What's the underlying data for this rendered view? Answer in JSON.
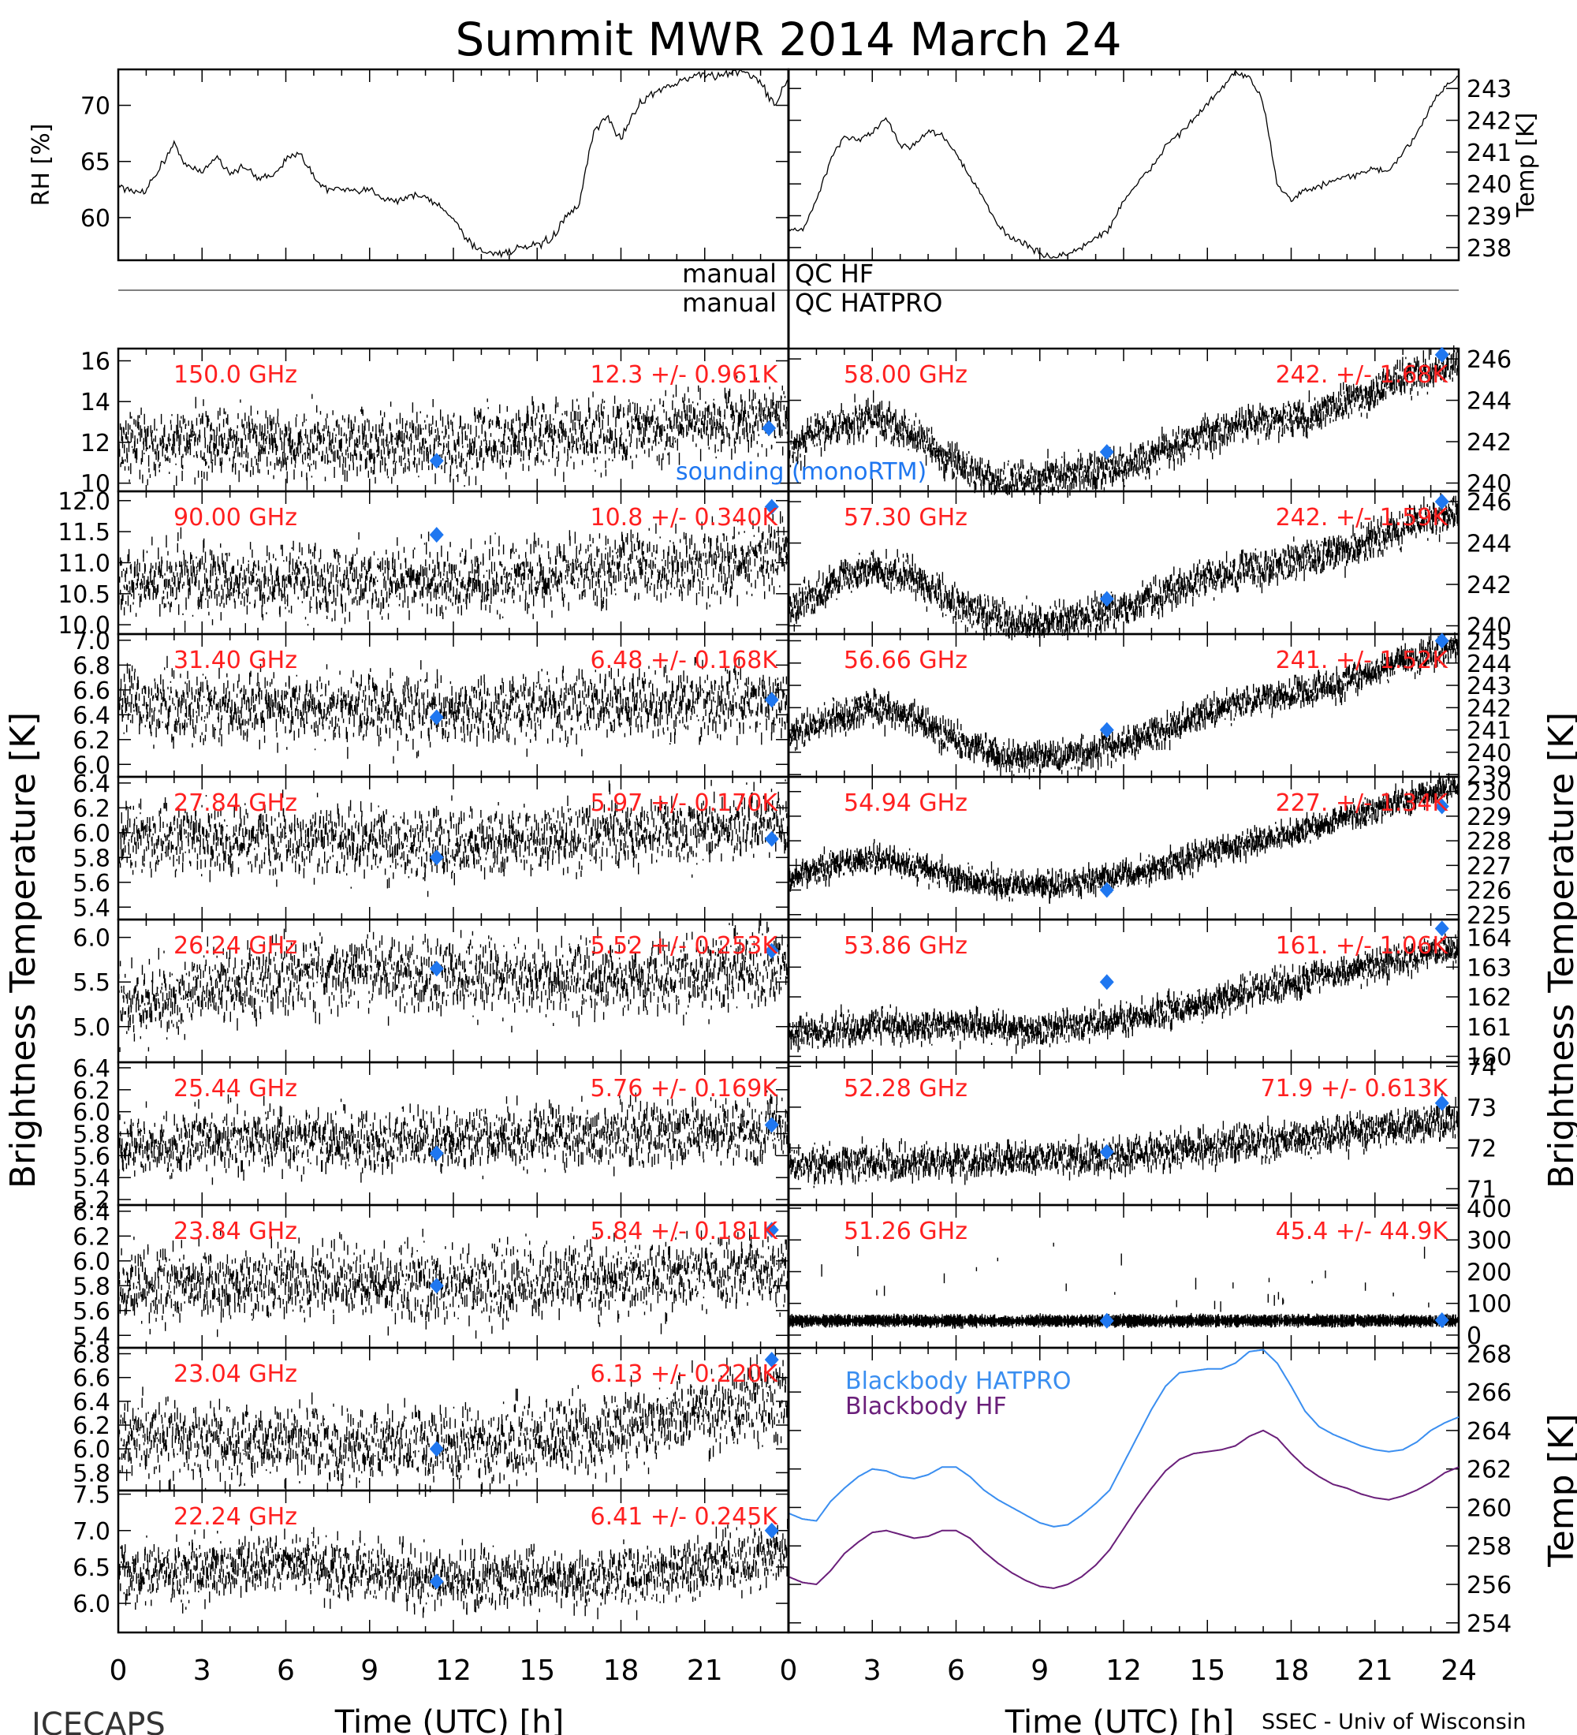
{
  "page": {
    "title": "Summit MWR 2014 March 24",
    "footer_left": "ICECAPS",
    "footer_right": "SSEC - Univ of Wisconsin",
    "left_ylabel": "Brightness Temperature [K]",
    "right_ylabel": "Brightness Temperature [K]",
    "qc_prefix": "manual",
    "qc_hf": "QC HF",
    "qc_hatpro": "QC HATPRO",
    "colors": {
      "frequency_label": "#ff2020",
      "sounding": "#1f77f0",
      "blackbody_hatpro": "#3a8ef0",
      "blackbody_hf": "#6a1f7a",
      "data": "#000000"
    }
  },
  "chart_data": [
    {
      "id": "rh",
      "type": "line",
      "ylabel": "RH [%]",
      "x_ticks": [
        0,
        3,
        6,
        9,
        12,
        15,
        18,
        21
      ],
      "y_ticks": [
        60,
        65,
        70
      ],
      "xlim": [
        0,
        24
      ],
      "ylim": [
        56.2,
        73.2
      ],
      "x": [
        0,
        0.5,
        1,
        1.5,
        2,
        2.5,
        3,
        3.5,
        4,
        4.5,
        5,
        5.5,
        6,
        6.5,
        7,
        7.5,
        8,
        8.5,
        9,
        9.5,
        10,
        10.5,
        11,
        11.5,
        12,
        12.5,
        13,
        13.5,
        14,
        14.5,
        15,
        15.5,
        16,
        16.5,
        17,
        17.5,
        18,
        18.5,
        19,
        19.5,
        20,
        20.5,
        21,
        21.5,
        22,
        22.5,
        23,
        23.5,
        24
      ],
      "y": [
        63,
        62.2,
        62.5,
        64.5,
        66.5,
        64.5,
        64,
        65.5,
        64,
        64.5,
        63.5,
        63.8,
        65,
        66,
        63.5,
        62.5,
        62.5,
        62.2,
        62.5,
        61.8,
        61.5,
        62,
        61.8,
        61,
        60,
        58,
        57,
        56.8,
        57,
        57.3,
        57.5,
        58,
        60,
        61,
        67.5,
        69,
        67,
        69.5,
        71,
        71.5,
        72,
        72.5,
        72.8,
        72.5,
        73,
        73,
        72,
        70,
        72.5
      ]
    },
    {
      "id": "temp",
      "type": "line",
      "ylabel": "Temp [K]",
      "y_ticks": [
        238,
        239,
        240,
        241,
        242,
        243
      ],
      "xlim": [
        0,
        24
      ],
      "ylim": [
        237.6,
        243.6
      ],
      "x": [
        0,
        0.5,
        1,
        1.5,
        2,
        2.5,
        3,
        3.5,
        4,
        4.5,
        5,
        5.5,
        6,
        6.5,
        7,
        7.5,
        8,
        8.5,
        9,
        9.5,
        10,
        10.5,
        11,
        11.5,
        12,
        12.5,
        13,
        13.5,
        14,
        14.5,
        15,
        15.5,
        16,
        16.5,
        17,
        17.5,
        18,
        18.5,
        19,
        19.5,
        20,
        20.5,
        21,
        21.5,
        22,
        22.5,
        23,
        23.5,
        24
      ],
      "y": [
        238.6,
        238.5,
        239.5,
        240.7,
        241.5,
        241.4,
        241.6,
        242.1,
        241.2,
        241.2,
        241.7,
        241.5,
        241,
        240.2,
        239.5,
        238.7,
        238.3,
        238.1,
        237.8,
        237.7,
        237.8,
        238,
        238.3,
        238.6,
        239.5,
        240,
        240.5,
        241.2,
        241.6,
        242,
        242.5,
        243,
        243.5,
        243.3,
        242.6,
        240,
        239.5,
        239.8,
        239.9,
        240.1,
        240.2,
        240.3,
        240.5,
        240.4,
        241,
        241.5,
        242.5,
        243,
        243.4
      ]
    },
    {
      "id": "ch150",
      "type": "scatter",
      "frequency": "150.0 GHz",
      "stats": "12.3 +/- 0.961K",
      "y_ticks": [
        10,
        12,
        14,
        16
      ],
      "ylim": [
        9.6,
        16.6
      ],
      "xlim": [
        0,
        24
      ],
      "mean": 12.3,
      "noise": 0.96,
      "trend_x": [
        0,
        3,
        6,
        9,
        12,
        15,
        18,
        21,
        24
      ],
      "trend_y": [
        11.8,
        12,
        12,
        11.9,
        11.8,
        12.2,
        12.6,
        12.9,
        13.3
      ],
      "sounding": [
        {
          "x": 11.4,
          "y": 11.1
        },
        {
          "x": 23.3,
          "y": 12.7
        }
      ],
      "sounding_label": "sounding (monoRTM)"
    },
    {
      "id": "ch90",
      "type": "scatter",
      "frequency": "90.00 GHz",
      "stats": "10.8 +/- 0.340K",
      "y_ticks": [
        10.0,
        10.5,
        11.0,
        11.5,
        12.0
      ],
      "ylim": [
        9.85,
        12.15
      ],
      "xlim": [
        0,
        24
      ],
      "mean": 10.8,
      "noise": 0.34,
      "trend_x": [
        0,
        6,
        12,
        18,
        24
      ],
      "trend_y": [
        10.7,
        10.7,
        10.7,
        10.9,
        11.1
      ],
      "sounding": [
        {
          "x": 11.4,
          "y": 11.45
        },
        {
          "x": 23.4,
          "y": 11.9
        }
      ]
    },
    {
      "id": "ch31",
      "type": "scatter",
      "frequency": "31.40 GHz",
      "stats": "6.48 +/- 0.168K",
      "y_ticks": [
        6.0,
        6.2,
        6.4,
        6.6,
        6.8,
        7.0
      ],
      "ylim": [
        5.9,
        7.05
      ],
      "xlim": [
        0,
        24
      ],
      "mean": 6.48,
      "noise": 0.17,
      "trend_x": [
        0,
        6,
        12,
        18,
        24
      ],
      "trend_y": [
        6.5,
        6.45,
        6.45,
        6.5,
        6.5
      ],
      "sounding": [
        {
          "x": 11.4,
          "y": 6.38
        },
        {
          "x": 23.4,
          "y": 6.52
        }
      ]
    },
    {
      "id": "ch27",
      "type": "scatter",
      "frequency": "27.84 GHz",
      "stats": "5.97 +/- 0.170K",
      "y_ticks": [
        5.4,
        5.6,
        5.8,
        6.0,
        6.2,
        6.4
      ],
      "ylim": [
        5.3,
        6.45
      ],
      "xlim": [
        0,
        24
      ],
      "mean": 5.97,
      "noise": 0.17,
      "trend_x": [
        0,
        6,
        12,
        18,
        24
      ],
      "trend_y": [
        5.95,
        5.95,
        5.9,
        6.0,
        6.05
      ],
      "sounding": [
        {
          "x": 11.4,
          "y": 5.8
        },
        {
          "x": 23.4,
          "y": 5.95
        }
      ]
    },
    {
      "id": "ch26",
      "type": "scatter",
      "frequency": "26.24 GHz",
      "stats": "5.52 +/- 0.253K",
      "y_ticks": [
        5.0,
        5.5,
        6.0
      ],
      "ylim": [
        4.6,
        6.2
      ],
      "xlim": [
        0,
        24
      ],
      "mean": 5.52,
      "noise": 0.25,
      "trend_x": [
        0,
        6,
        12,
        18,
        24
      ],
      "trend_y": [
        5.2,
        5.6,
        5.6,
        5.5,
        5.7
      ],
      "sounding": [
        {
          "x": 11.4,
          "y": 5.65
        },
        {
          "x": 23.4,
          "y": 5.85
        }
      ]
    },
    {
      "id": "ch25",
      "type": "scatter",
      "frequency": "25.44 GHz",
      "stats": "5.76 +/- 0.169K",
      "y_ticks": [
        5.2,
        5.4,
        5.6,
        5.8,
        6.0,
        6.2,
        6.4
      ],
      "ylim": [
        5.15,
        6.45
      ],
      "xlim": [
        0,
        24
      ],
      "mean": 5.76,
      "noise": 0.17,
      "trend_x": [
        0,
        6,
        12,
        18,
        24
      ],
      "trend_y": [
        5.7,
        5.75,
        5.75,
        5.8,
        5.85
      ],
      "sounding": [
        {
          "x": 11.4,
          "y": 5.62
        },
        {
          "x": 23.4,
          "y": 5.88
        }
      ]
    },
    {
      "id": "ch23_84",
      "type": "scatter",
      "frequency": "23.84 GHz",
      "stats": "5.84 +/- 0.181K",
      "y_ticks": [
        5.4,
        5.6,
        5.8,
        6.0,
        6.2,
        6.4
      ],
      "ylim": [
        5.3,
        6.45
      ],
      "xlim": [
        0,
        24
      ],
      "mean": 5.84,
      "noise": 0.18,
      "trend_x": [
        0,
        6,
        12,
        18,
        24
      ],
      "trend_y": [
        5.8,
        5.85,
        5.8,
        5.85,
        5.95
      ],
      "sounding": [
        {
          "x": 11.4,
          "y": 5.8
        },
        {
          "x": 23.4,
          "y": 6.25
        }
      ]
    },
    {
      "id": "ch23_04",
      "type": "scatter",
      "frequency": "23.04 GHz",
      "stats": "6.13 +/- 0.220K",
      "y_ticks": [
        5.8,
        6.0,
        6.2,
        6.4,
        6.6,
        6.8
      ],
      "ylim": [
        5.65,
        6.85
      ],
      "xlim": [
        0,
        24
      ],
      "mean": 6.13,
      "noise": 0.2,
      "trend_x": [
        0,
        6,
        12,
        18,
        24
      ],
      "trend_y": [
        6.1,
        6.05,
        6.0,
        6.15,
        6.45
      ],
      "sounding": [
        {
          "x": 11.4,
          "y": 6.0
        },
        {
          "x": 23.4,
          "y": 6.75
        }
      ]
    },
    {
      "id": "ch22",
      "type": "scatter",
      "frequency": "22.24 GHz",
      "stats": "6.41 +/- 0.245K",
      "y_ticks": [
        6.0,
        6.5,
        7.0,
        7.5
      ],
      "ylim": [
        5.6,
        7.55
      ],
      "xlim": [
        0,
        24
      ],
      "mean": 6.41,
      "noise": 0.24,
      "trend_x": [
        0,
        6,
        12,
        18,
        24
      ],
      "trend_y": [
        6.4,
        6.55,
        6.3,
        6.35,
        6.7
      ],
      "sounding": [
        {
          "x": 11.4,
          "y": 6.3
        },
        {
          "x": 23.4,
          "y": 7.0
        }
      ]
    },
    {
      "id": "ch58",
      "type": "scatter",
      "frequency": "58.00 GHz",
      "stats": "242. +/- 1.68K",
      "y_ticks": [
        240,
        242,
        244,
        246
      ],
      "ylim": [
        239.6,
        246.5
      ],
      "xlim": [
        0,
        24
      ],
      "mean": 242,
      "noise": 0.5,
      "trend_x": [
        0,
        1.5,
        3,
        4.5,
        6,
        7.5,
        9,
        10.5,
        12,
        13.5,
        15,
        16.5,
        18,
        19.5,
        21,
        22.5,
        24
      ],
      "trend_y": [
        241.5,
        242.8,
        243.2,
        242.3,
        240.9,
        240.2,
        240.1,
        240.5,
        240.8,
        241.6,
        242.3,
        242.9,
        243.1,
        243.7,
        244.5,
        245.3,
        245.8
      ],
      "sounding": [
        {
          "x": 11.4,
          "y": 241.5
        },
        {
          "x": 23.4,
          "y": 246.2
        }
      ]
    },
    {
      "id": "ch57_30",
      "type": "scatter",
      "frequency": "57.30 GHz",
      "stats": "242. +/- 1.59K",
      "y_ticks": [
        240,
        242,
        244,
        246
      ],
      "ylim": [
        239.6,
        246.5
      ],
      "xlim": [
        0,
        24
      ],
      "mean": 242,
      "noise": 0.5,
      "trend_x": [
        0,
        1.5,
        3,
        4.5,
        6,
        7.5,
        9,
        10.5,
        12,
        13.5,
        15,
        16.5,
        18,
        19.5,
        21,
        22.5,
        24
      ],
      "trend_y": [
        240.7,
        242.0,
        242.8,
        242.3,
        241.0,
        240.3,
        240.1,
        240.4,
        240.9,
        241.6,
        242.3,
        242.8,
        243.0,
        243.5,
        244.2,
        245.0,
        245.5
      ],
      "sounding": [
        {
          "x": 11.4,
          "y": 241.3
        },
        {
          "x": 23.4,
          "y": 246.0
        }
      ]
    },
    {
      "id": "ch56",
      "type": "scatter",
      "frequency": "56.66 GHz",
      "stats": "241. +/- 1.52K",
      "y_ticks": [
        239,
        240,
        241,
        242,
        243,
        244,
        245
      ],
      "ylim": [
        238.9,
        245.3
      ],
      "xlim": [
        0,
        24
      ],
      "mean": 241,
      "noise": 0.4,
      "trend_x": [
        0,
        1.5,
        3,
        4.5,
        6,
        7.5,
        9,
        10.5,
        12,
        13.5,
        15,
        16.5,
        18,
        19.5,
        21,
        22.5,
        24
      ],
      "trend_y": [
        240.6,
        241.5,
        242.0,
        241.6,
        240.5,
        239.9,
        239.7,
        239.9,
        240.4,
        241.0,
        241.8,
        242.3,
        242.6,
        243.0,
        243.6,
        244.3,
        244.8
      ],
      "sounding": [
        {
          "x": 11.4,
          "y": 241.0
        },
        {
          "x": 23.4,
          "y": 245.0
        }
      ]
    },
    {
      "id": "ch54",
      "type": "scatter",
      "frequency": "54.94 GHz",
      "stats": "227. +/- 1.34K",
      "y_ticks": [
        225,
        226,
        227,
        228,
        229,
        230
      ],
      "ylim": [
        224.8,
        230.6
      ],
      "xlim": [
        0,
        24
      ],
      "mean": 227,
      "noise": 0.3,
      "trend_x": [
        0,
        1.5,
        3,
        4.5,
        6,
        7.5,
        9,
        10.5,
        12,
        13.5,
        15,
        16.5,
        18,
        19.5,
        21,
        22.5,
        24
      ],
      "trend_y": [
        226.5,
        227.0,
        227.3,
        227.0,
        226.5,
        226.2,
        226.2,
        226.3,
        226.6,
        227.0,
        227.5,
        227.9,
        228.3,
        228.8,
        229.3,
        229.8,
        230.2
      ],
      "sounding": [
        {
          "x": 11.4,
          "y": 226.0
        },
        {
          "x": 23.4,
          "y": 229.4
        }
      ]
    },
    {
      "id": "ch53",
      "type": "scatter",
      "frequency": "53.86 GHz",
      "stats": "161. +/- 1.06K",
      "y_ticks": [
        160,
        161,
        162,
        163,
        164
      ],
      "ylim": [
        159.8,
        164.6
      ],
      "xlim": [
        0,
        24
      ],
      "mean": 161,
      "noise": 0.3,
      "trend_x": [
        0,
        3,
        6,
        9,
        12,
        15,
        18,
        21,
        24
      ],
      "trend_y": [
        160.7,
        161.0,
        161.0,
        160.9,
        161.2,
        161.8,
        162.5,
        163.1,
        163.6
      ],
      "sounding": [
        {
          "x": 11.4,
          "y": 162.5
        },
        {
          "x": 23.4,
          "y": 164.3
        }
      ]
    },
    {
      "id": "ch52",
      "type": "scatter",
      "frequency": "52.28 GHz",
      "stats": "71.9 +/- 0.613K",
      "y_ticks": [
        71,
        72,
        73,
        74
      ],
      "ylim": [
        70.6,
        74.1
      ],
      "xlim": [
        0,
        24
      ],
      "mean": 71.9,
      "noise": 0.25,
      "trend_x": [
        0,
        6,
        12,
        18,
        24
      ],
      "trend_y": [
        71.6,
        71.7,
        71.8,
        72.2,
        72.7
      ],
      "sounding": [
        {
          "x": 11.4,
          "y": 71.9
        },
        {
          "x": 23.4,
          "y": 73.1
        }
      ]
    },
    {
      "id": "ch51",
      "type": "scatter",
      "frequency": "51.26 GHz",
      "stats": "45.4 +/- 44.9K",
      "y_ticks": [
        0,
        100,
        200,
        300,
        400
      ],
      "ylim": [
        -40,
        410
      ],
      "xlim": [
        0,
        24
      ],
      "mean": 45.4,
      "noise": 3,
      "trend_x": [
        0,
        24
      ],
      "trend_y": [
        45,
        45
      ],
      "sounding": [
        {
          "x": 11.4,
          "y": 45
        },
        {
          "x": 23.4,
          "y": 47
        }
      ]
    },
    {
      "id": "blackbody",
      "type": "line",
      "ylabel": "Temp [K]",
      "y_ticks": [
        254,
        256,
        258,
        260,
        262,
        264,
        266,
        268
      ],
      "xlim": [
        0,
        24
      ],
      "ylim": [
        253.5,
        268.3
      ],
      "x": [
        0,
        0.5,
        1,
        1.5,
        2,
        2.5,
        3,
        3.5,
        4,
        4.5,
        5,
        5.5,
        6,
        6.5,
        7,
        7.5,
        8,
        8.5,
        9,
        9.5,
        10,
        10.5,
        11,
        11.5,
        12,
        12.5,
        13,
        13.5,
        14,
        14.5,
        15,
        15.5,
        16,
        16.5,
        17,
        17.5,
        18,
        18.5,
        19,
        19.5,
        20,
        20.5,
        21,
        21.5,
        22,
        22.5,
        23,
        23.5,
        24
      ],
      "series": [
        {
          "name": "Blackbody HATPRO",
          "color": "#3a8ef0",
          "values": [
            259.7,
            259.4,
            259.3,
            260.3,
            261.0,
            261.6,
            262.0,
            261.9,
            261.6,
            261.5,
            261.7,
            262.1,
            262.1,
            261.6,
            260.9,
            260.4,
            260.0,
            259.6,
            259.2,
            259.0,
            259.1,
            259.6,
            260.2,
            260.9,
            262.3,
            263.7,
            265.1,
            266.3,
            267.0,
            267.1,
            267.2,
            267.2,
            267.5,
            268.1,
            268.2,
            267.5,
            266.3,
            265.0,
            264.2,
            263.8,
            263.5,
            263.2,
            263.0,
            262.9,
            263.0,
            263.4,
            264.0,
            264.4,
            264.7
          ]
        },
        {
          "name": "Blackbody HF",
          "color": "#6a1f7a",
          "values": [
            256.4,
            256.1,
            256.0,
            256.7,
            257.6,
            258.2,
            258.7,
            258.8,
            258.6,
            258.4,
            258.5,
            258.8,
            258.8,
            258.4,
            257.7,
            257.1,
            256.6,
            256.2,
            255.9,
            255.8,
            256.0,
            256.4,
            257.0,
            257.8,
            258.9,
            260.0,
            261.0,
            261.9,
            262.5,
            262.8,
            262.9,
            263.0,
            263.2,
            263.7,
            264.0,
            263.6,
            262.8,
            262.1,
            261.6,
            261.2,
            261.0,
            260.7,
            260.5,
            260.4,
            260.6,
            260.9,
            261.3,
            261.8,
            262.1
          ]
        }
      ]
    }
  ],
  "x_axis": {
    "ticks": [
      0,
      3,
      6,
      9,
      12,
      15,
      18,
      21
    ],
    "right_ticks": [
      0,
      3,
      6,
      9,
      12,
      15,
      18,
      21,
      24
    ],
    "label": "Time (UTC) [h]"
  }
}
